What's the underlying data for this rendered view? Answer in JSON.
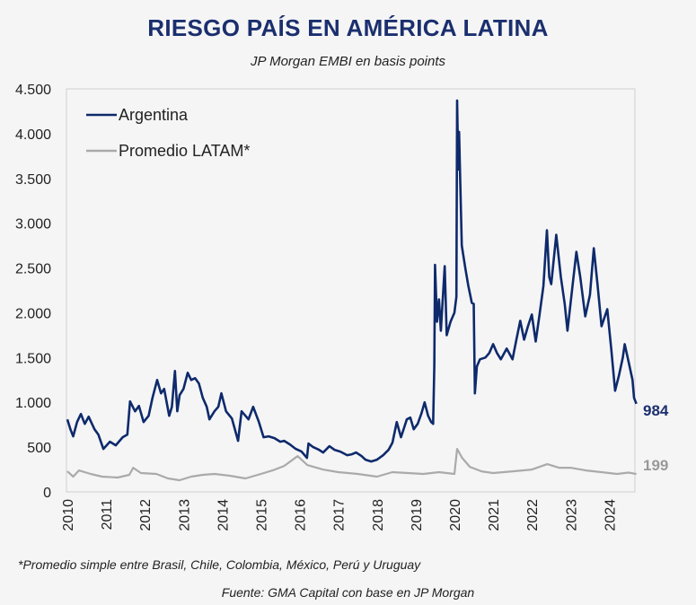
{
  "chart_data": {
    "type": "line",
    "title": "RIESGO PAÍS EN AMÉRICA LATINA",
    "subtitle": "JP Morgan EMBI en basis points",
    "xlabel": "",
    "ylabel": "",
    "ylim": [
      0,
      4500
    ],
    "xlim": [
      2010,
      2024.7
    ],
    "yticks": [
      0,
      500,
      1000,
      1500,
      2000,
      2500,
      3000,
      3500,
      4000,
      4500
    ],
    "ytick_labels": [
      "0",
      "500",
      "1.000",
      "1.500",
      "2.000",
      "2.500",
      "3.000",
      "3.500",
      "4.000",
      "4.500"
    ],
    "xtick_labels": [
      "2010",
      "2011",
      "2012",
      "2013",
      "2014",
      "2015",
      "2016",
      "2017",
      "2018",
      "2019",
      "2020",
      "2021",
      "2022",
      "2023",
      "2024"
    ],
    "grid": false,
    "legend_placement": "top-left",
    "series": [
      {
        "name": "Argentina",
        "color": "#0e2a6b",
        "end_label": "984",
        "points": [
          [
            2010.0,
            810
          ],
          [
            2010.08,
            700
          ],
          [
            2010.15,
            620
          ],
          [
            2010.25,
            780
          ],
          [
            2010.35,
            870
          ],
          [
            2010.45,
            760
          ],
          [
            2010.55,
            840
          ],
          [
            2010.7,
            700
          ],
          [
            2010.8,
            640
          ],
          [
            2010.93,
            480
          ],
          [
            2011.1,
            560
          ],
          [
            2011.25,
            520
          ],
          [
            2011.43,
            610
          ],
          [
            2011.55,
            640
          ],
          [
            2011.62,
            1010
          ],
          [
            2011.75,
            900
          ],
          [
            2011.85,
            960
          ],
          [
            2011.97,
            780
          ],
          [
            2012.1,
            850
          ],
          [
            2012.2,
            1050
          ],
          [
            2012.32,
            1250
          ],
          [
            2012.42,
            1100
          ],
          [
            2012.5,
            1150
          ],
          [
            2012.63,
            850
          ],
          [
            2012.7,
            950
          ],
          [
            2012.78,
            1350
          ],
          [
            2012.84,
            900
          ],
          [
            2012.9,
            1080
          ],
          [
            2013.0,
            1150
          ],
          [
            2013.11,
            1330
          ],
          [
            2013.2,
            1250
          ],
          [
            2013.3,
            1270
          ],
          [
            2013.4,
            1210
          ],
          [
            2013.5,
            1050
          ],
          [
            2013.6,
            950
          ],
          [
            2013.67,
            810
          ],
          [
            2013.8,
            900
          ],
          [
            2013.9,
            950
          ],
          [
            2013.98,
            1100
          ],
          [
            2014.1,
            900
          ],
          [
            2014.25,
            820
          ],
          [
            2014.41,
            570
          ],
          [
            2014.5,
            900
          ],
          [
            2014.6,
            850
          ],
          [
            2014.68,
            810
          ],
          [
            2014.8,
            950
          ],
          [
            2014.95,
            780
          ],
          [
            2015.07,
            610
          ],
          [
            2015.2,
            620
          ],
          [
            2015.35,
            600
          ],
          [
            2015.5,
            560
          ],
          [
            2015.6,
            570
          ],
          [
            2015.75,
            530
          ],
          [
            2015.9,
            480
          ],
          [
            2016.05,
            450
          ],
          [
            2016.19,
            380
          ],
          [
            2016.23,
            540
          ],
          [
            2016.35,
            500
          ],
          [
            2016.5,
            470
          ],
          [
            2016.61,
            440
          ],
          [
            2016.77,
            510
          ],
          [
            2016.9,
            470
          ],
          [
            2017.05,
            450
          ],
          [
            2017.23,
            410
          ],
          [
            2017.35,
            420
          ],
          [
            2017.46,
            440
          ],
          [
            2017.6,
            400
          ],
          [
            2017.7,
            360
          ],
          [
            2017.85,
            340
          ],
          [
            2018.0,
            360
          ],
          [
            2018.16,
            410
          ],
          [
            2018.3,
            470
          ],
          [
            2018.4,
            550
          ],
          [
            2018.51,
            780
          ],
          [
            2018.62,
            610
          ],
          [
            2018.77,
            810
          ],
          [
            2018.86,
            830
          ],
          [
            2018.95,
            700
          ],
          [
            2019.05,
            760
          ],
          [
            2019.15,
            880
          ],
          [
            2019.23,
            1000
          ],
          [
            2019.32,
            850
          ],
          [
            2019.4,
            780
          ],
          [
            2019.45,
            760
          ],
          [
            2019.48,
            1400
          ],
          [
            2019.5,
            2535
          ],
          [
            2019.55,
            1900
          ],
          [
            2019.6,
            2150
          ],
          [
            2019.65,
            1800
          ],
          [
            2019.75,
            2520
          ],
          [
            2019.8,
            1750
          ],
          [
            2019.9,
            1900
          ],
          [
            2020.0,
            2000
          ],
          [
            2020.05,
            2180
          ],
          [
            2020.07,
            4370
          ],
          [
            2020.1,
            3600
          ],
          [
            2020.12,
            4020
          ],
          [
            2020.15,
            3460
          ],
          [
            2020.19,
            2750
          ],
          [
            2020.28,
            2500
          ],
          [
            2020.36,
            2300
          ],
          [
            2020.45,
            2110
          ],
          [
            2020.5,
            2100
          ],
          [
            2020.53,
            1100
          ],
          [
            2020.58,
            1400
          ],
          [
            2020.66,
            1480
          ],
          [
            2020.8,
            1500
          ],
          [
            2020.9,
            1550
          ],
          [
            2021.0,
            1650
          ],
          [
            2021.1,
            1550
          ],
          [
            2021.2,
            1480
          ],
          [
            2021.35,
            1600
          ],
          [
            2021.5,
            1480
          ],
          [
            2021.6,
            1700
          ],
          [
            2021.7,
            1910
          ],
          [
            2021.8,
            1700
          ],
          [
            2021.9,
            1850
          ],
          [
            2022.0,
            1980
          ],
          [
            2022.1,
            1680
          ],
          [
            2022.2,
            1980
          ],
          [
            2022.3,
            2300
          ],
          [
            2022.39,
            2920
          ],
          [
            2022.45,
            2400
          ],
          [
            2022.5,
            2320
          ],
          [
            2022.63,
            2870
          ],
          [
            2022.75,
            2400
          ],
          [
            2022.85,
            2100
          ],
          [
            2022.92,
            1800
          ],
          [
            2023.05,
            2300
          ],
          [
            2023.15,
            2680
          ],
          [
            2023.25,
            2400
          ],
          [
            2023.38,
            1960
          ],
          [
            2023.5,
            2200
          ],
          [
            2023.6,
            2720
          ],
          [
            2023.7,
            2300
          ],
          [
            2023.8,
            1850
          ],
          [
            2023.95,
            2040
          ],
          [
            2024.05,
            1600
          ],
          [
            2024.15,
            1130
          ],
          [
            2024.25,
            1300
          ],
          [
            2024.35,
            1500
          ],
          [
            2024.4,
            1650
          ],
          [
            2024.5,
            1450
          ],
          [
            2024.6,
            1250
          ],
          [
            2024.64,
            1050
          ],
          [
            2024.7,
            984
          ]
        ]
      },
      {
        "name": "Promedio LATAM*",
        "color": "#aaaaaa",
        "end_label": "199",
        "points": [
          [
            2010.0,
            230
          ],
          [
            2010.15,
            170
          ],
          [
            2010.3,
            240
          ],
          [
            2010.6,
            200
          ],
          [
            2010.9,
            170
          ],
          [
            2011.3,
            160
          ],
          [
            2011.6,
            190
          ],
          [
            2011.7,
            270
          ],
          [
            2011.9,
            210
          ],
          [
            2012.3,
            200
          ],
          [
            2012.6,
            150
          ],
          [
            2012.9,
            130
          ],
          [
            2013.2,
            170
          ],
          [
            2013.5,
            190
          ],
          [
            2013.8,
            200
          ],
          [
            2014.2,
            180
          ],
          [
            2014.6,
            150
          ],
          [
            2015.0,
            200
          ],
          [
            2015.3,
            240
          ],
          [
            2015.6,
            290
          ],
          [
            2015.95,
            400
          ],
          [
            2016.2,
            300
          ],
          [
            2016.6,
            250
          ],
          [
            2017.0,
            220
          ],
          [
            2017.5,
            200
          ],
          [
            2018.0,
            170
          ],
          [
            2018.4,
            220
          ],
          [
            2018.8,
            210
          ],
          [
            2019.2,
            200
          ],
          [
            2019.6,
            220
          ],
          [
            2020.0,
            200
          ],
          [
            2020.07,
            480
          ],
          [
            2020.2,
            380
          ],
          [
            2020.4,
            280
          ],
          [
            2020.7,
            230
          ],
          [
            2021.0,
            210
          ],
          [
            2021.5,
            230
          ],
          [
            2022.0,
            250
          ],
          [
            2022.4,
            310
          ],
          [
            2022.7,
            270
          ],
          [
            2023.0,
            270
          ],
          [
            2023.4,
            240
          ],
          [
            2023.8,
            220
          ],
          [
            2024.2,
            200
          ],
          [
            2024.5,
            215
          ],
          [
            2024.7,
            199
          ]
        ]
      }
    ],
    "footnote": "*Promedio simple entre Brasil, Chile, Colombia, México, Perú y Uruguay",
    "source": "Fuente: GMA Capital con base en JP Morgan"
  }
}
